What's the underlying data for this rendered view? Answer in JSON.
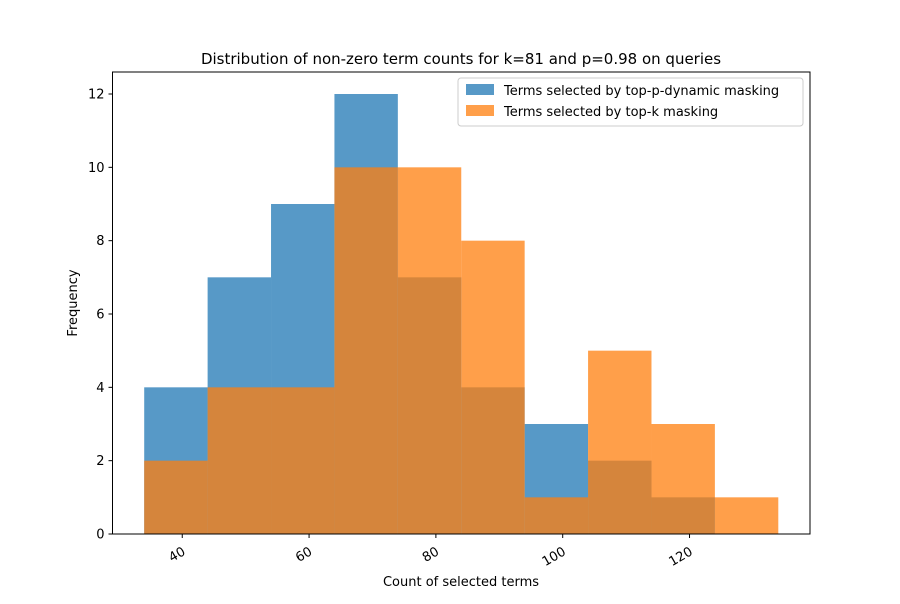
{
  "chart_data": {
    "type": "histogram",
    "title": "Distribution of non-zero term counts for k=81 and p=0.98 on queries",
    "xlabel": "Count of selected terms",
    "ylabel": "Frequency",
    "xlim": [
      29,
      139
    ],
    "ylim": [
      0,
      12.6
    ],
    "x_ticks": [
      40,
      60,
      80,
      100,
      120
    ],
    "y_ticks": [
      0,
      2,
      4,
      6,
      8,
      10,
      12
    ],
    "x_tick_rotation": 30,
    "legend_position": "top-right",
    "bin_edges": [
      34,
      44,
      54,
      64,
      74,
      84,
      94,
      104,
      114,
      124,
      134
    ],
    "series": [
      {
        "name": "Terms selected by top-p-dynamic masking",
        "color": "#1f77b4",
        "alpha": 0.75,
        "values": [
          4,
          7,
          9,
          12,
          7,
          4,
          3,
          2,
          1,
          0
        ]
      },
      {
        "name": "Terms selected by top-k masking",
        "color": "#ff7f0e",
        "alpha": 0.75,
        "values": [
          2,
          4,
          4,
          10,
          10,
          8,
          1,
          5,
          3,
          1
        ]
      }
    ]
  }
}
